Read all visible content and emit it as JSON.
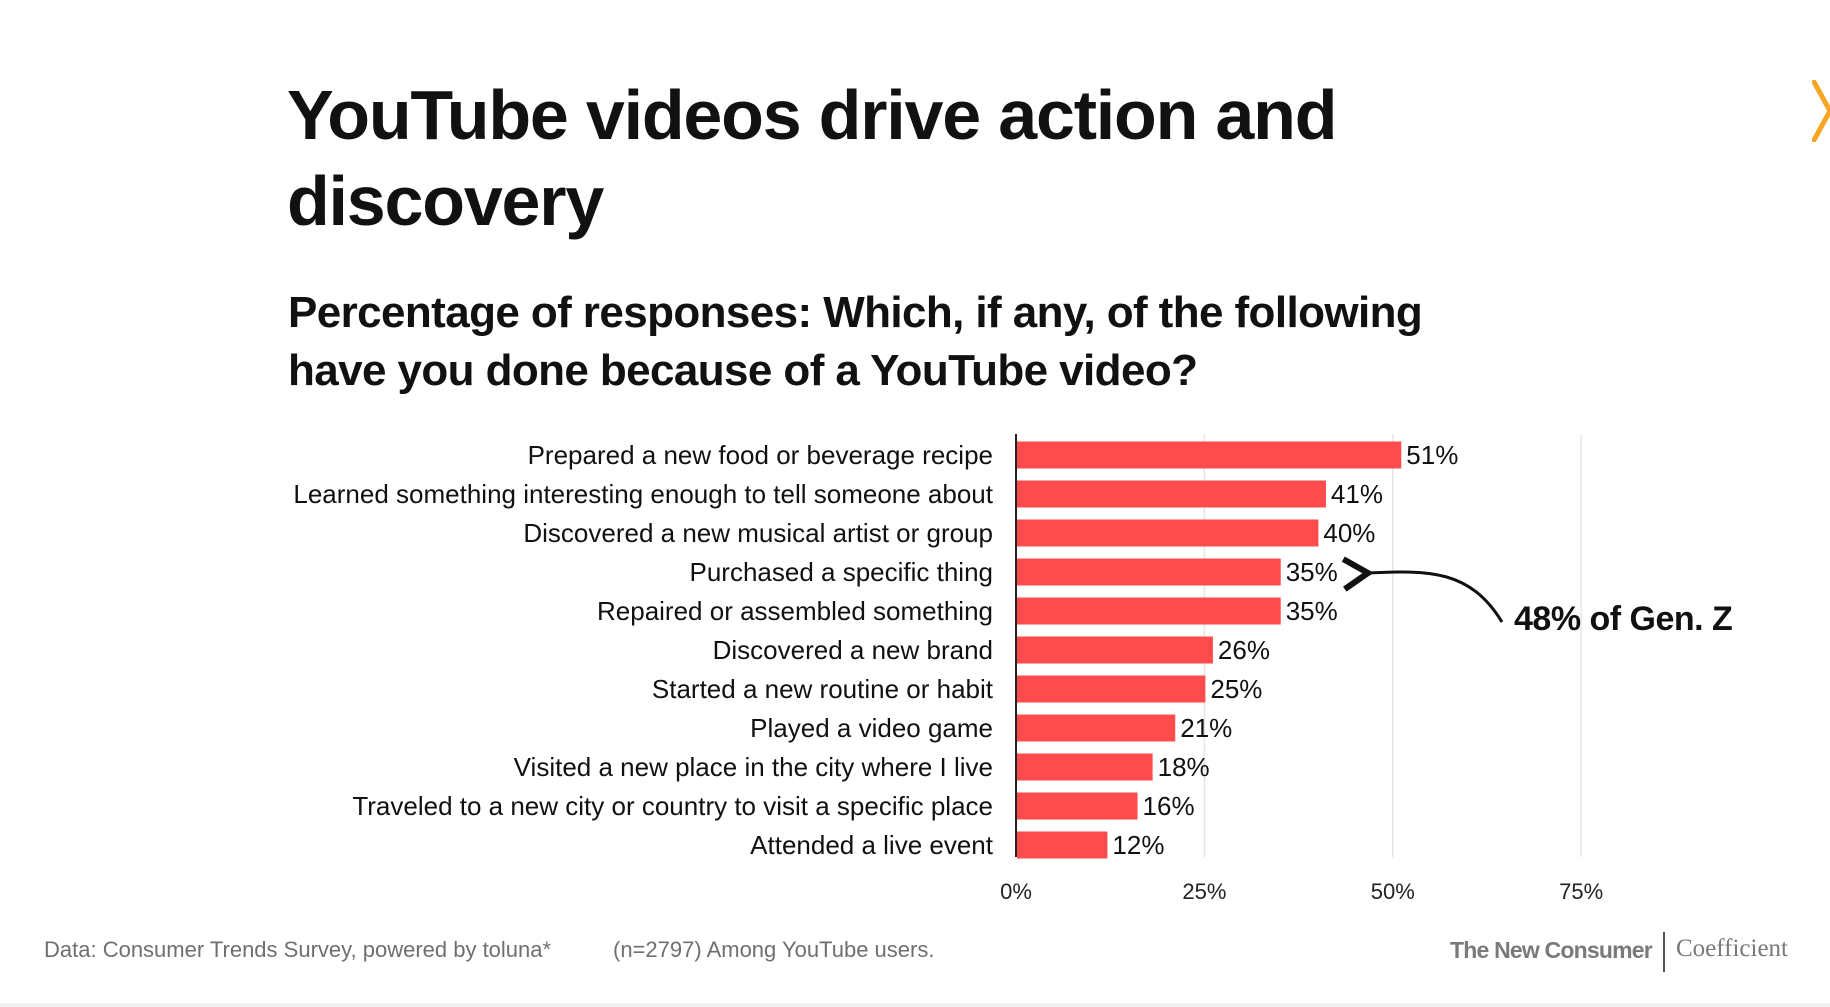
{
  "header": {
    "title": "YouTube videos drive action and discovery",
    "subtitle": "Percentage of responses: Which, if any, of the following have you done because of a YouTube video?"
  },
  "icons": {
    "next": "chevron-right-icon"
  },
  "colors": {
    "bar": "#FF4B4B",
    "accent": "#F5A623",
    "grid": "#E6E6E6",
    "axis": "#222222"
  },
  "chart_data": {
    "type": "bar",
    "orientation": "horizontal",
    "categories": [
      "Prepared a new food or beverage recipe",
      "Learned something interesting enough to tell someone about",
      "Discovered a new musical artist or group",
      "Purchased a specific thing",
      "Repaired or assembled something",
      "Discovered a new brand",
      "Started a new routine or habit",
      "Played a video game",
      "Visited a new place in the city where I live",
      "Traveled to a new city or country to visit a specific place",
      "Attended a live event"
    ],
    "values": [
      51,
      41,
      40,
      35,
      35,
      26,
      25,
      21,
      18,
      16,
      12
    ],
    "value_labels": [
      "51%",
      "41%",
      "40%",
      "35%",
      "35%",
      "26%",
      "25%",
      "21%",
      "18%",
      "16%",
      "12%"
    ],
    "xlim": [
      0,
      100
    ],
    "x_ticks": [
      0,
      25,
      50,
      75
    ],
    "x_tick_labels": [
      "0%",
      "25%",
      "50%",
      "75%"
    ],
    "grid": true,
    "annotation": {
      "text": "48% of Gen. Z",
      "target_category": "Purchased a specific thing"
    }
  },
  "footer": {
    "source": "Data: Consumer Trends Survey, powered by toluna*",
    "sample": "(n=2797) Among YouTube users.",
    "brand_primary": "The New Consumer",
    "brand_secondary": "Coefficient"
  }
}
